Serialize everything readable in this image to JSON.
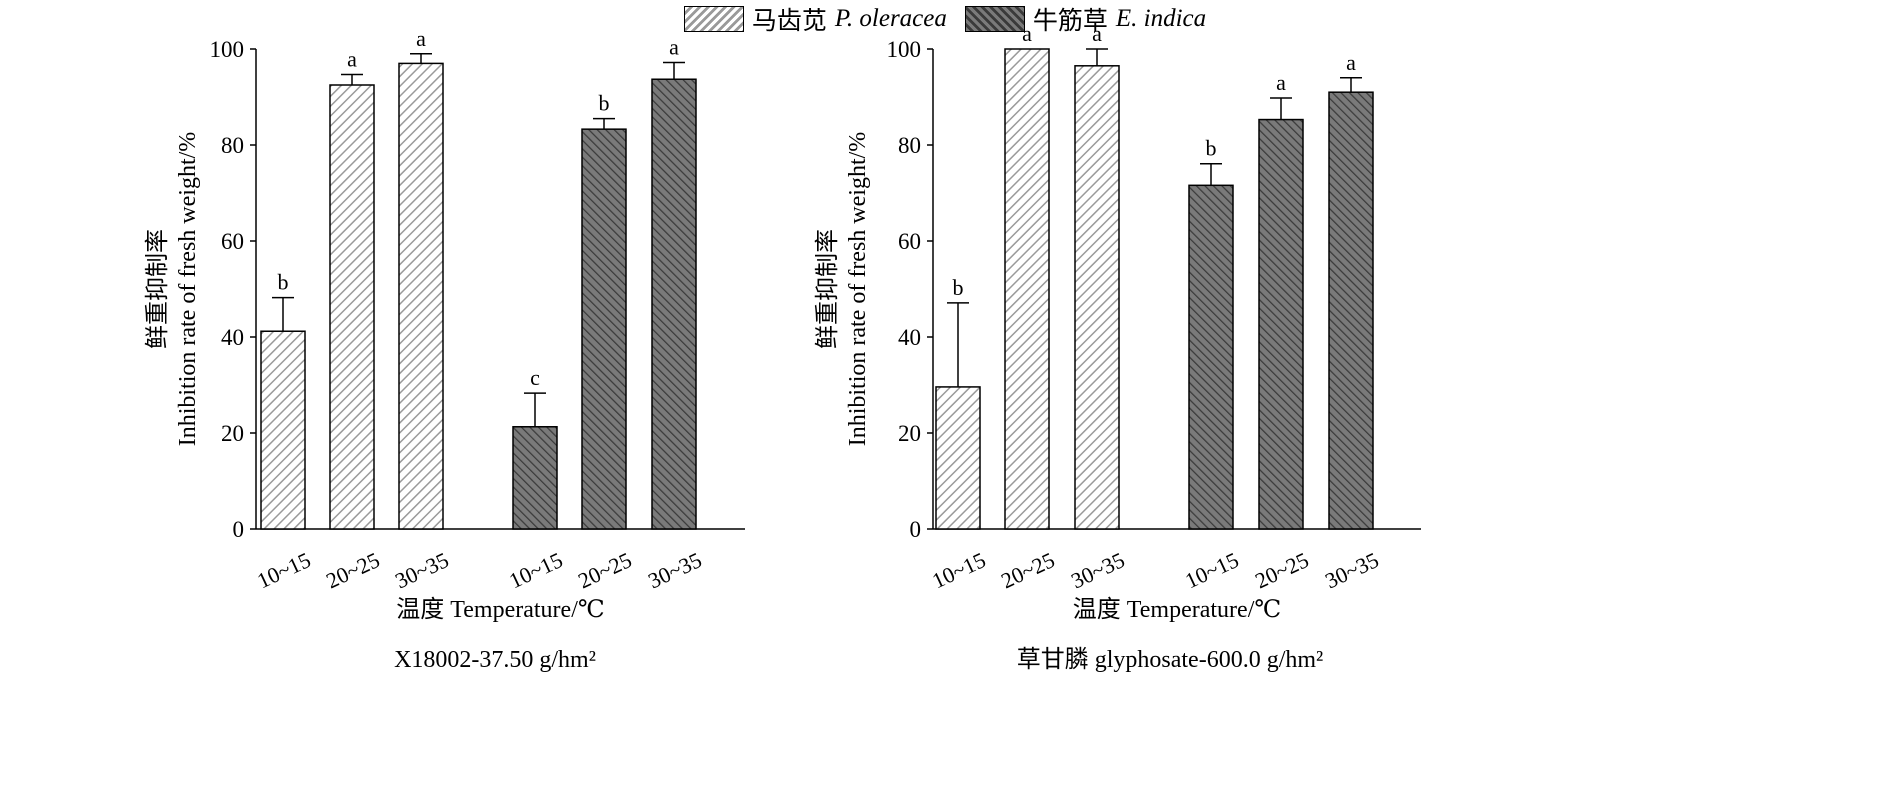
{
  "legend": [
    {
      "name_cn": "马齿苋",
      "name_latin": "P. oleracea",
      "pattern": "light-hatch"
    },
    {
      "name_cn": "牛筋草",
      "name_latin": "E. indica",
      "pattern": "dark-hatch"
    }
  ],
  "colors": {
    "light_bg": "#ffffff",
    "light_stripe": "#9a9a9a",
    "dark_bg": "#7a7a7a",
    "dark_stripe": "#3a3a3a",
    "axis": "#000000"
  },
  "chart_data": [
    {
      "type": "bar",
      "title": "X18002-37.50 g/hm²",
      "xlabel": "温度 Temperature/℃",
      "ylabel_cn": "鲜重抑制率",
      "ylabel": "Inhibition rate of fresh weight/%",
      "ylim": [
        0,
        100
      ],
      "yticks": [
        0,
        20,
        40,
        60,
        80,
        100
      ],
      "categories": [
        "10~15",
        "20~25",
        "30~35"
      ],
      "series": [
        {
          "name": "马齿苋 P. oleracea",
          "values": [
            41.2,
            92.5,
            97.0
          ],
          "errors": [
            7.0,
            2.2,
            2.0
          ],
          "letters": [
            "b",
            "a",
            "a"
          ]
        },
        {
          "name": "牛筋草 E. indica",
          "values": [
            21.3,
            83.3,
            93.7
          ],
          "errors": [
            7.0,
            2.2,
            3.5
          ],
          "letters": [
            "c",
            "b",
            "a"
          ]
        }
      ]
    },
    {
      "type": "bar",
      "title": "草甘膦 glyphosate-600.0 g/hm²",
      "xlabel": "温度 Temperature/℃",
      "ylabel_cn": "鲜重抑制率",
      "ylabel": "Inhibition rate of fresh weight/%",
      "ylim": [
        0,
        100
      ],
      "yticks": [
        0,
        20,
        40,
        60,
        80,
        100
      ],
      "categories": [
        "10~15",
        "20~25",
        "30~35"
      ],
      "series": [
        {
          "name": "马齿苋 P. oleracea",
          "values": [
            29.6,
            100.0,
            96.5
          ],
          "errors": [
            17.5,
            0.0,
            3.5
          ],
          "letters": [
            "b",
            "a",
            "a"
          ]
        },
        {
          "name": "牛筋草 E. indica",
          "values": [
            71.6,
            85.3,
            91.0
          ],
          "errors": [
            4.5,
            4.5,
            3.0
          ],
          "letters": [
            "b",
            "a",
            "a"
          ]
        }
      ]
    }
  ]
}
